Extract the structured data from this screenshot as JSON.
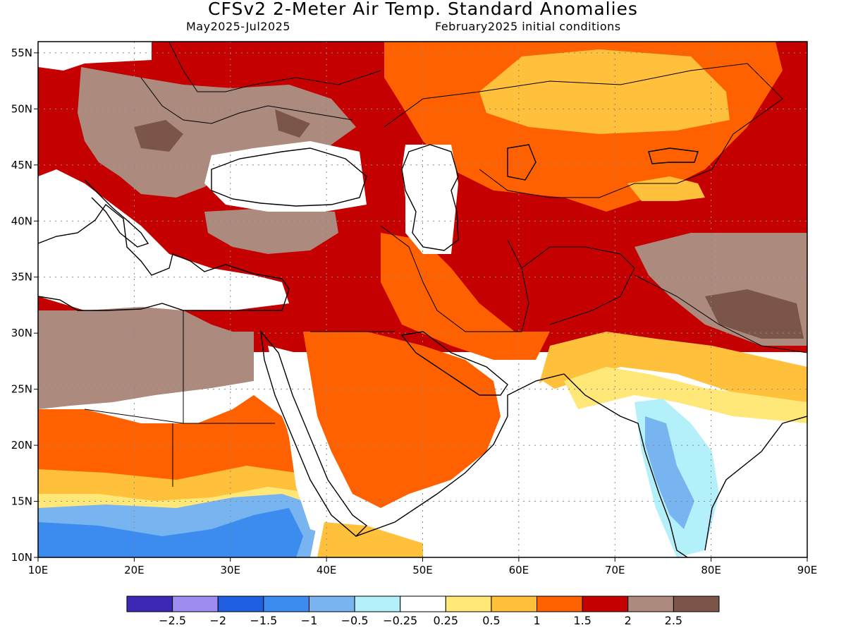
{
  "title": "CFSv2 2-Meter Air Temp. Standard Anomalies",
  "subtitle_left": "May2025-Jul2025",
  "subtitle_right": "February2025 initial conditions",
  "map": {
    "lon_range": [
      10,
      90
    ],
    "lat_range": [
      10,
      56
    ],
    "lat_ticks": [
      {
        "value": 55,
        "label": "55N"
      },
      {
        "value": 50,
        "label": "50N"
      },
      {
        "value": 45,
        "label": "45N"
      },
      {
        "value": 40,
        "label": "40N"
      },
      {
        "value": 35,
        "label": "35N"
      },
      {
        "value": 30,
        "label": "30N"
      },
      {
        "value": 25,
        "label": "25N"
      },
      {
        "value": 20,
        "label": "20N"
      },
      {
        "value": 15,
        "label": "15N"
      },
      {
        "value": 10,
        "label": "10N"
      }
    ],
    "lon_ticks": [
      {
        "value": 10,
        "label": "10E"
      },
      {
        "value": 20,
        "label": "20E"
      },
      {
        "value": 30,
        "label": "30E"
      },
      {
        "value": 40,
        "label": "40E"
      },
      {
        "value": 50,
        "label": "50E"
      },
      {
        "value": 60,
        "label": "60E"
      },
      {
        "value": 70,
        "label": "70E"
      },
      {
        "value": 80,
        "label": "80E"
      },
      {
        "value": 90,
        "label": "90E"
      }
    ]
  },
  "colorbar": {
    "colors": [
      "#3b28b4",
      "#9f8cf0",
      "#1f5fe0",
      "#3c8cf0",
      "#78b4f0",
      "#b4f0fa",
      "#ffffff",
      "#ffe878",
      "#ffc03c",
      "#ff6000",
      "#c40000",
      "#ad8a7e",
      "#7a5548"
    ],
    "labels": [
      "-2.5",
      "-2",
      "-1.5",
      "-1",
      "-0.5",
      "-0.25",
      "0.25",
      "0.5",
      "1",
      "1.5",
      "2",
      "2.5"
    ]
  }
}
